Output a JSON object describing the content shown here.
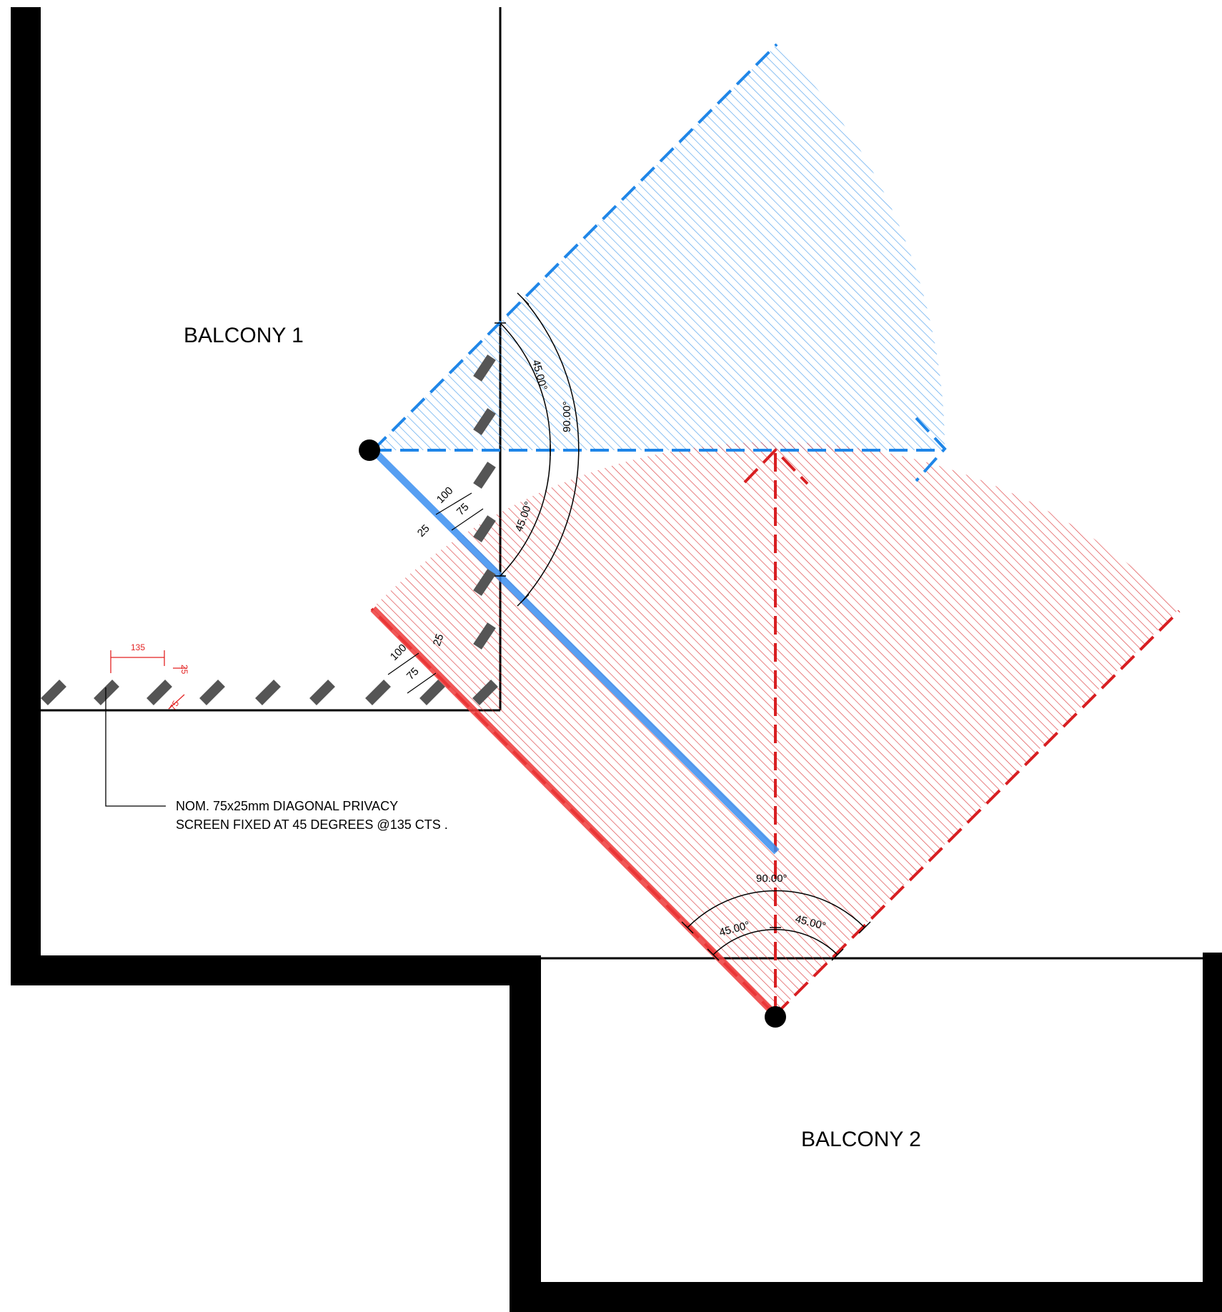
{
  "rooms": {
    "balcony_1": "BALCONY  1",
    "balcony_2": "BALCONY  2"
  },
  "note": {
    "line1": "NOM. 75x25mm DIAGONAL PRIVACY",
    "line2": "SCREEN FIXED AT 45 DEGREES @135 CTS ."
  },
  "angles": {
    "upper_45": "45.00°",
    "upper_90": "90.00°",
    "lower_45": "45.00°",
    "bottom_90": "90.00°",
    "bottom_left_45": "45.00°",
    "bottom_right_45": "45.00°"
  },
  "dimensions": {
    "screen_100": "100",
    "screen_75": "75",
    "screen_25": "25",
    "lower_100": "100",
    "lower_75": "75",
    "lower_25": "25",
    "spacing_135": "135",
    "slat_25": "25",
    "slat_75": "75"
  },
  "colors": {
    "wall": "#000000",
    "blue_view": "#2f8fe8",
    "red_view": "#e02424",
    "slat": "#555555",
    "dim_red": "#e32222"
  }
}
